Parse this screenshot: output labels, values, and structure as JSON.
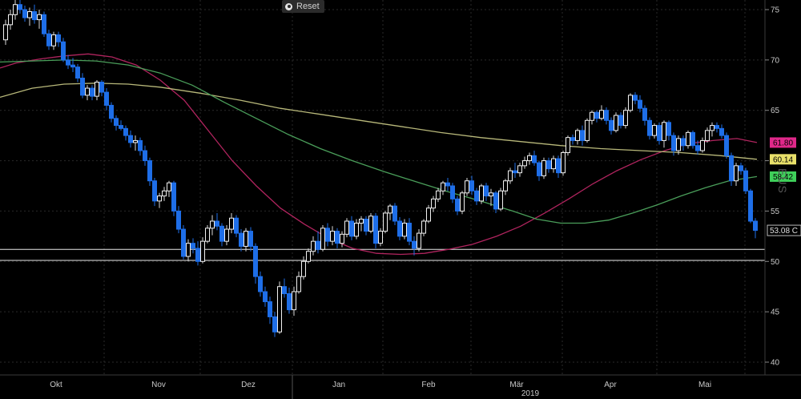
{
  "toolbar": {
    "reset_label": "Reset"
  },
  "corner_text": "EUS",
  "chart_data": {
    "type": "candlestick",
    "title": "",
    "xlabel": "",
    "ylabel": "",
    "ylim": [
      39.5,
      76.3
    ],
    "yticks": [
      40,
      45,
      50,
      55,
      60,
      65,
      70,
      75
    ],
    "grid": true,
    "axis_position": "right",
    "x_months": [
      "Okt",
      "Nov",
      "Dez",
      "Jan",
      "Feb",
      "Mär",
      "Apr",
      "Mai"
    ],
    "year_label": "2019",
    "horizontal_lines": [
      51.2,
      50.1
    ],
    "ma_labels": [
      {
        "value": "61.80",
        "level": 61.8,
        "color": "#e0288a"
      },
      {
        "value": "60.14",
        "level": 60.14,
        "color": "#e8e06a"
      },
      {
        "value": "58.42",
        "level": 58.42,
        "color": "#3fcf5a"
      }
    ],
    "last_price": {
      "value": "53.08 C",
      "level": 53.08
    },
    "series": [
      {
        "key": "ma_red",
        "color": "#b0245e",
        "points": [
          [
            0,
            69.2
          ],
          [
            20,
            69.7
          ],
          [
            50,
            70.1
          ],
          [
            80,
            70.4
          ],
          [
            110,
            70.6
          ],
          [
            140,
            70.3
          ],
          [
            170,
            69.5
          ],
          [
            200,
            68.0
          ],
          [
            230,
            66.0
          ],
          [
            260,
            63.0
          ],
          [
            290,
            60.0
          ],
          [
            320,
            57.5
          ],
          [
            350,
            55.3
          ],
          [
            380,
            53.7
          ],
          [
            410,
            52.3
          ],
          [
            440,
            51.3
          ],
          [
            470,
            50.8
          ],
          [
            500,
            50.7
          ],
          [
            530,
            50.8
          ],
          [
            560,
            51.2
          ],
          [
            590,
            51.7
          ],
          [
            620,
            52.5
          ],
          [
            650,
            53.5
          ],
          [
            680,
            54.8
          ],
          [
            710,
            56.2
          ],
          [
            740,
            57.7
          ],
          [
            770,
            59.0
          ],
          [
            800,
            60.1
          ],
          [
            830,
            61.0
          ],
          [
            860,
            61.7
          ],
          [
            890,
            62.0
          ],
          [
            920,
            62.2
          ],
          [
            945,
            61.8
          ]
        ]
      },
      {
        "key": "ma_yellow",
        "color": "#b8b87a",
        "points": [
          [
            0,
            66.3
          ],
          [
            40,
            67.2
          ],
          [
            80,
            67.6
          ],
          [
            120,
            67.7
          ],
          [
            160,
            67.6
          ],
          [
            200,
            67.3
          ],
          [
            250,
            66.7
          ],
          [
            300,
            66.0
          ],
          [
            350,
            65.2
          ],
          [
            400,
            64.6
          ],
          [
            450,
            64.0
          ],
          [
            500,
            63.4
          ],
          [
            550,
            62.8
          ],
          [
            600,
            62.3
          ],
          [
            650,
            61.9
          ],
          [
            700,
            61.5
          ],
          [
            750,
            61.2
          ],
          [
            800,
            61.0
          ],
          [
            850,
            60.8
          ],
          [
            900,
            60.5
          ],
          [
            945,
            60.14
          ]
        ]
      },
      {
        "key": "ma_green",
        "color": "#4a9e5a",
        "points": [
          [
            0,
            69.8
          ],
          [
            40,
            69.9
          ],
          [
            80,
            70.0
          ],
          [
            120,
            69.9
          ],
          [
            160,
            69.5
          ],
          [
            200,
            68.7
          ],
          [
            240,
            67.5
          ],
          [
            280,
            65.8
          ],
          [
            320,
            64.2
          ],
          [
            360,
            62.6
          ],
          [
            400,
            61.2
          ],
          [
            440,
            60.0
          ],
          [
            480,
            58.9
          ],
          [
            520,
            57.9
          ],
          [
            560,
            56.9
          ],
          [
            600,
            56.0
          ],
          [
            640,
            55.0
          ],
          [
            670,
            54.2
          ],
          [
            700,
            53.8
          ],
          [
            730,
            53.8
          ],
          [
            760,
            54.1
          ],
          [
            790,
            54.8
          ],
          [
            820,
            55.6
          ],
          [
            850,
            56.5
          ],
          [
            880,
            57.3
          ],
          [
            910,
            58.0
          ],
          [
            945,
            58.42
          ]
        ]
      }
    ],
    "candles": [
      [
        7,
        72.0,
        74.0,
        71.5,
        73.5
      ],
      [
        13,
        73.5,
        75.0,
        73.0,
        74.5
      ],
      [
        19,
        74.5,
        76.0,
        74.0,
        75.5
      ],
      [
        25,
        75.5,
        76.2,
        74.6,
        75.0
      ],
      [
        31,
        75.0,
        75.4,
        73.8,
        74.2
      ],
      [
        37,
        74.2,
        75.2,
        73.4,
        74.8
      ],
      [
        43,
        74.8,
        75.5,
        73.6,
        74.0
      ],
      [
        49,
        74.0,
        75.0,
        73.1,
        74.5
      ],
      [
        55,
        74.5,
        74.8,
        72.3,
        72.6
      ],
      [
        61,
        72.6,
        73.0,
        71.0,
        71.4
      ],
      [
        67,
        71.4,
        72.8,
        71.0,
        72.5
      ],
      [
        73,
        72.5,
        72.8,
        71.3,
        71.8
      ],
      [
        79,
        71.8,
        72.2,
        69.8,
        70.0
      ],
      [
        85,
        70.0,
        70.5,
        69.1,
        69.5
      ],
      [
        91,
        69.5,
        70.2,
        68.8,
        69.3
      ],
      [
        97,
        69.3,
        69.6,
        67.8,
        68.2
      ],
      [
        103,
        68.2,
        68.7,
        66.2,
        66.5
      ],
      [
        109,
        66.5,
        67.5,
        66.0,
        67.2
      ],
      [
        115,
        67.2,
        67.5,
        66.0,
        66.4
      ],
      [
        121,
        66.4,
        68.0,
        66.0,
        67.8
      ],
      [
        127,
        67.8,
        68.0,
        66.4,
        66.8
      ],
      [
        133,
        66.8,
        67.2,
        65.0,
        65.5
      ],
      [
        139,
        65.5,
        65.8,
        63.8,
        64.2
      ],
      [
        145,
        64.2,
        64.5,
        63.0,
        63.5
      ],
      [
        151,
        63.5,
        64.0,
        63.0,
        63.2
      ],
      [
        157,
        63.2,
        63.5,
        62.0,
        62.5
      ],
      [
        163,
        62.5,
        63.0,
        61.3,
        61.8
      ],
      [
        169,
        61.8,
        62.5,
        61.0,
        62.0
      ],
      [
        175,
        62.0,
        62.3,
        60.5,
        61.0
      ],
      [
        181,
        61.0,
        61.5,
        59.5,
        60.0
      ],
      [
        187,
        60.0,
        60.3,
        57.5,
        58.0
      ],
      [
        193,
        58.0,
        58.3,
        55.5,
        56.0
      ],
      [
        199,
        56.0,
        56.8,
        55.3,
        56.5
      ],
      [
        205,
        56.5,
        57.4,
        56.0,
        57.0
      ],
      [
        211,
        57.0,
        58.0,
        56.4,
        57.8
      ],
      [
        217,
        57.8,
        58.0,
        54.5,
        55.0
      ],
      [
        223,
        55.0,
        55.5,
        52.8,
        53.2
      ],
      [
        229,
        53.2,
        53.6,
        50.2,
        50.5
      ],
      [
        235,
        50.5,
        52.2,
        50.0,
        51.8
      ],
      [
        241,
        51.8,
        52.3,
        50.8,
        51.3
      ],
      [
        247,
        51.3,
        52.0,
        49.6,
        50.0
      ],
      [
        253,
        50.0,
        52.4,
        49.8,
        52.0
      ],
      [
        259,
        52.0,
        53.6,
        51.8,
        53.3
      ],
      [
        265,
        53.3,
        54.6,
        52.6,
        54.0
      ],
      [
        271,
        54.0,
        54.8,
        53.1,
        53.5
      ],
      [
        277,
        53.5,
        53.8,
        51.5,
        52.0
      ],
      [
        283,
        52.0,
        53.6,
        51.6,
        53.2
      ],
      [
        289,
        53.2,
        54.8,
        52.8,
        54.3
      ],
      [
        295,
        54.3,
        54.6,
        52.4,
        52.8
      ],
      [
        301,
        52.8,
        53.2,
        51.0,
        51.5
      ],
      [
        307,
        51.5,
        53.3,
        51.0,
        53.0
      ],
      [
        313,
        53.0,
        53.4,
        51.0,
        51.5
      ],
      [
        319,
        51.5,
        51.8,
        47.8,
        48.5
      ],
      [
        325,
        48.5,
        49.0,
        46.5,
        47.0
      ],
      [
        331,
        47.0,
        47.5,
        45.5,
        46.0
      ],
      [
        337,
        46.0,
        46.5,
        43.8,
        44.5
      ],
      [
        343,
        44.5,
        45.0,
        42.5,
        43.0
      ],
      [
        349,
        43.0,
        48.0,
        42.8,
        47.5
      ],
      [
        355,
        47.5,
        48.3,
        46.4,
        46.8
      ],
      [
        361,
        46.8,
        47.4,
        44.8,
        45.2
      ],
      [
        367,
        45.2,
        47.5,
        44.6,
        47.0
      ],
      [
        373,
        47.0,
        49.0,
        46.8,
        48.5
      ],
      [
        379,
        48.5,
        50.5,
        48.2,
        50.0
      ],
      [
        385,
        50.0,
        51.3,
        49.8,
        51.0
      ],
      [
        391,
        51.0,
        52.5,
        50.6,
        52.0
      ],
      [
        397,
        52.0,
        53.0,
        50.8,
        51.2
      ],
      [
        403,
        51.2,
        53.6,
        51.0,
        53.3
      ],
      [
        409,
        53.3,
        53.8,
        51.5,
        52.0
      ],
      [
        415,
        52.0,
        53.5,
        51.6,
        53.0
      ],
      [
        421,
        53.0,
        53.3,
        51.3,
        51.8
      ],
      [
        427,
        51.8,
        53.0,
        51.4,
        52.7
      ],
      [
        433,
        52.7,
        54.3,
        52.4,
        54.0
      ],
      [
        439,
        54.0,
        54.5,
        52.1,
        52.5
      ],
      [
        445,
        52.5,
        54.2,
        52.2,
        53.8
      ],
      [
        451,
        53.8,
        54.5,
        53.0,
        54.2
      ],
      [
        457,
        54.2,
        54.5,
        52.6,
        53.0
      ],
      [
        463,
        53.0,
        54.8,
        52.8,
        54.5
      ],
      [
        469,
        54.5,
        54.8,
        51.3,
        51.8
      ],
      [
        475,
        51.8,
        53.3,
        51.5,
        53.0
      ],
      [
        481,
        53.0,
        55.0,
        52.8,
        54.8
      ],
      [
        487,
        54.8,
        55.7,
        54.1,
        55.5
      ],
      [
        493,
        55.5,
        55.8,
        53.6,
        54.0
      ],
      [
        499,
        54.0,
        54.4,
        52.1,
        52.5
      ],
      [
        505,
        52.5,
        54.2,
        52.2,
        53.8
      ],
      [
        511,
        53.8,
        54.3,
        51.6,
        52.0
      ],
      [
        517,
        52.0,
        52.5,
        50.6,
        51.3
      ],
      [
        523,
        51.3,
        53.2,
        51.0,
        52.8
      ],
      [
        529,
        52.8,
        54.2,
        52.5,
        54.0
      ],
      [
        535,
        54.0,
        55.6,
        53.8,
        55.3
      ],
      [
        541,
        55.3,
        56.5,
        54.9,
        56.2
      ],
      [
        547,
        56.2,
        57.3,
        55.9,
        57.0
      ],
      [
        553,
        57.0,
        58.0,
        56.6,
        57.8
      ],
      [
        559,
        57.8,
        58.3,
        57.0,
        57.5
      ],
      [
        565,
        57.5,
        57.8,
        55.8,
        56.2
      ],
      [
        571,
        56.2,
        56.5,
        54.6,
        55.0
      ],
      [
        577,
        55.0,
        57.0,
        54.7,
        56.8
      ],
      [
        583,
        56.8,
        58.3,
        56.5,
        58.0
      ],
      [
        589,
        58.0,
        58.5,
        56.6,
        57.0
      ],
      [
        595,
        57.0,
        57.3,
        55.6,
        56.0
      ],
      [
        601,
        56.0,
        57.7,
        55.7,
        57.5
      ],
      [
        607,
        57.5,
        57.8,
        56.0,
        56.5
      ],
      [
        613,
        56.5,
        57.2,
        55.5,
        56.8
      ],
      [
        619,
        56.8,
        57.0,
        54.8,
        55.2
      ],
      [
        625,
        55.2,
        57.3,
        55.0,
        57.0
      ],
      [
        631,
        57.0,
        58.2,
        56.6,
        58.0
      ],
      [
        637,
        58.0,
        59.3,
        57.7,
        59.0
      ],
      [
        643,
        59.0,
        59.8,
        58.3,
        58.8
      ],
      [
        649,
        58.8,
        59.8,
        58.4,
        59.5
      ],
      [
        655,
        59.5,
        60.4,
        59.2,
        60.0
      ],
      [
        661,
        60.0,
        60.8,
        59.6,
        60.5
      ],
      [
        667,
        60.5,
        61.0,
        59.5,
        59.8
      ],
      [
        673,
        59.8,
        60.0,
        58.0,
        58.5
      ],
      [
        679,
        58.5,
        60.3,
        58.2,
        60.0
      ],
      [
        685,
        60.0,
        60.3,
        58.8,
        59.2
      ],
      [
        691,
        59.2,
        60.5,
        58.8,
        60.2
      ],
      [
        697,
        60.2,
        60.5,
        58.3,
        58.8
      ],
      [
        703,
        58.8,
        61.0,
        58.5,
        60.8
      ],
      [
        709,
        60.8,
        62.5,
        60.5,
        62.3
      ],
      [
        715,
        62.3,
        62.6,
        61.6,
        62.0
      ],
      [
        721,
        62.0,
        63.2,
        61.6,
        63.0
      ],
      [
        727,
        63.0,
        63.5,
        61.5,
        62.0
      ],
      [
        733,
        62.0,
        64.2,
        61.8,
        64.0
      ],
      [
        739,
        64.0,
        65.0,
        63.6,
        64.8
      ],
      [
        745,
        64.8,
        65.0,
        63.8,
        64.2
      ],
      [
        751,
        64.2,
        65.5,
        64.0,
        65.0
      ],
      [
        757,
        65.0,
        65.3,
        63.6,
        64.0
      ],
      [
        763,
        64.0,
        64.3,
        62.6,
        63.0
      ],
      [
        769,
        63.0,
        64.8,
        62.8,
        64.5
      ],
      [
        775,
        64.5,
        64.8,
        63.2,
        63.5
      ],
      [
        781,
        63.5,
        65.3,
        63.2,
        65.0
      ],
      [
        787,
        65.0,
        66.7,
        64.8,
        66.5
      ],
      [
        793,
        66.5,
        66.8,
        65.6,
        66.0
      ],
      [
        799,
        66.0,
        66.5,
        64.8,
        65.2
      ],
      [
        805,
        65.2,
        65.5,
        63.5,
        64.0
      ],
      [
        811,
        64.0,
        64.3,
        62.1,
        62.5
      ],
      [
        817,
        62.5,
        63.7,
        62.2,
        63.5
      ],
      [
        823,
        63.5,
        63.8,
        61.6,
        62.0
      ],
      [
        829,
        62.0,
        64.0,
        61.3,
        63.8
      ],
      [
        835,
        63.8,
        64.0,
        62.0,
        62.5
      ],
      [
        841,
        62.5,
        62.8,
        60.5,
        61.0
      ],
      [
        847,
        61.0,
        62.5,
        60.6,
        62.2
      ],
      [
        853,
        62.2,
        62.5,
        61.0,
        61.5
      ],
      [
        859,
        61.5,
        63.0,
        61.2,
        62.8
      ],
      [
        865,
        62.8,
        63.0,
        61.2,
        61.5
      ],
      [
        871,
        61.5,
        62.0,
        60.6,
        61.0
      ],
      [
        877,
        61.0,
        62.3,
        60.8,
        62.0
      ],
      [
        883,
        62.0,
        63.3,
        61.8,
        63.0
      ],
      [
        889,
        63.0,
        63.8,
        62.4,
        63.5
      ],
      [
        895,
        63.5,
        63.8,
        62.8,
        63.2
      ],
      [
        901,
        63.2,
        63.6,
        62.2,
        62.5
      ],
      [
        907,
        62.5,
        62.8,
        60.2,
        60.5
      ],
      [
        913,
        60.5,
        60.8,
        57.5,
        58.0
      ],
      [
        919,
        58.0,
        59.8,
        57.5,
        59.5
      ],
      [
        925,
        59.5,
        59.8,
        58.6,
        59.0
      ],
      [
        931,
        59.0,
        59.3,
        56.7,
        57.0
      ],
      [
        937,
        57.0,
        57.2,
        53.8,
        54.0
      ],
      [
        943,
        54.0,
        54.3,
        52.3,
        53.08
      ]
    ]
  }
}
